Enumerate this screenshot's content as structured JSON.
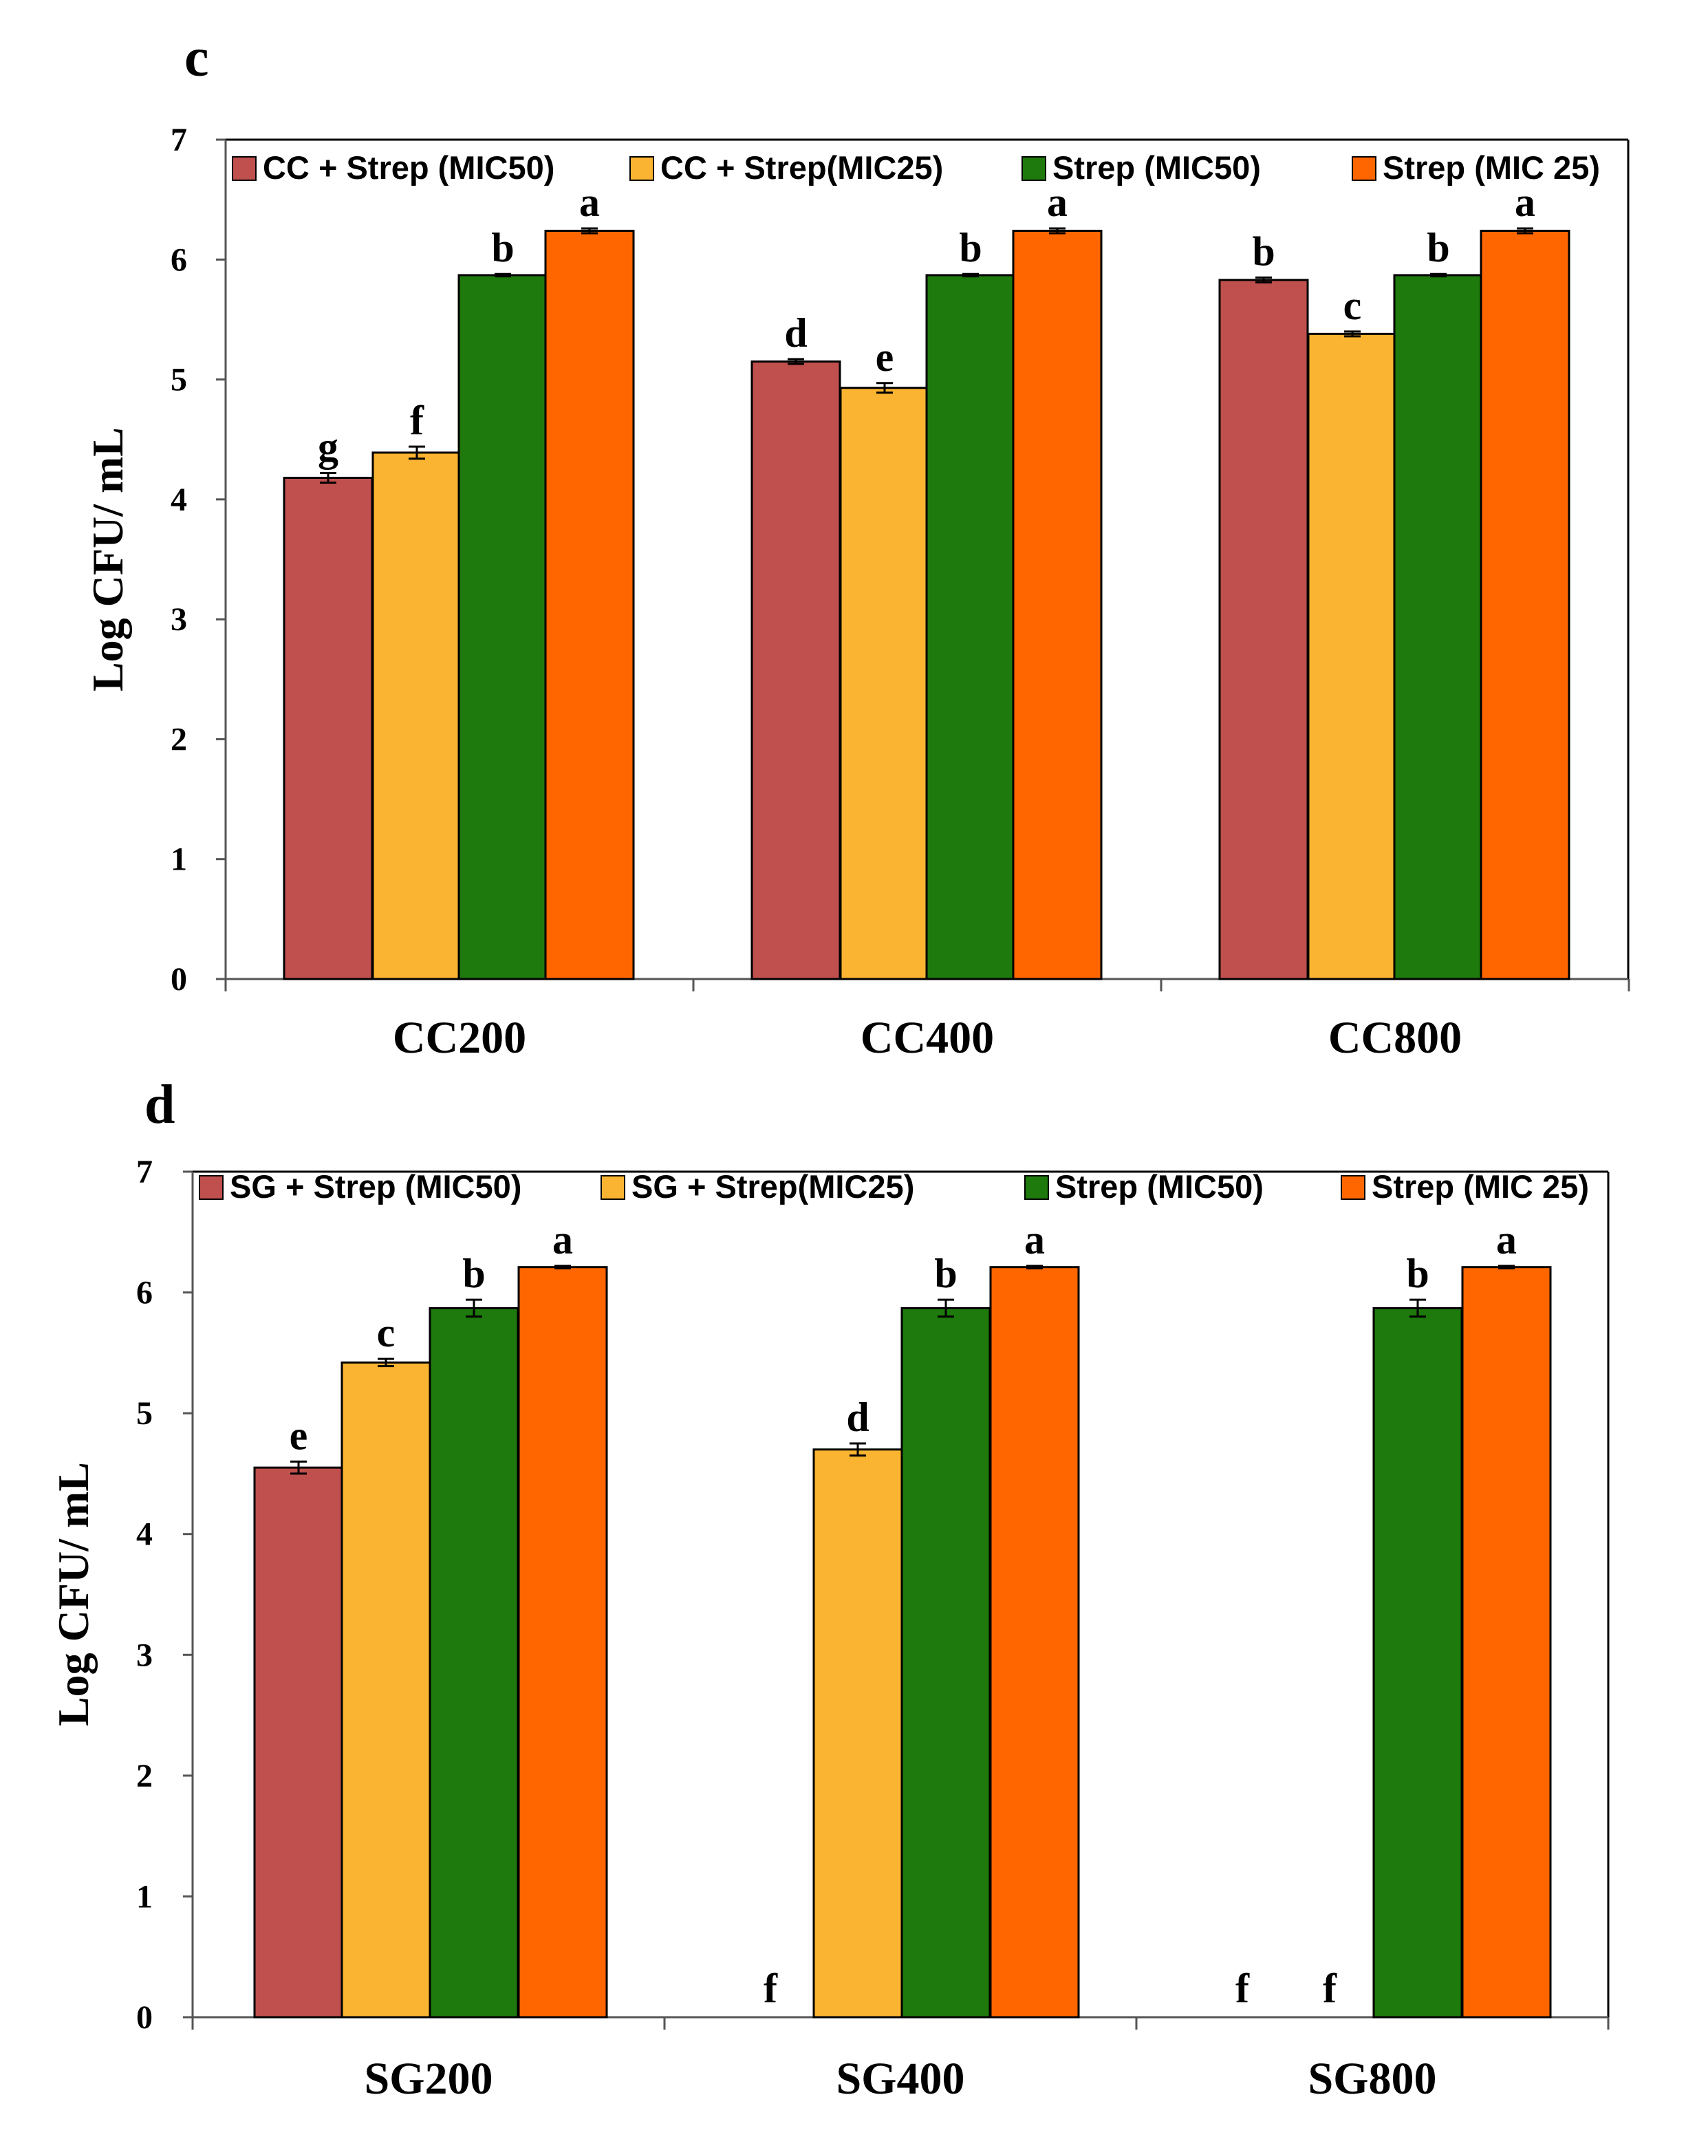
{
  "colors": {
    "series1": "#c0504d",
    "series2": "#fbb431",
    "series3": "#1e7a0c",
    "series4": "#ff6600",
    "axis": "#555555"
  },
  "chart_data": [
    {
      "type": "bar",
      "panel": "c",
      "ylabel": "Log CFU/ mL",
      "ylim": [
        0,
        7
      ],
      "yticks": [
        "0",
        "1",
        "2",
        "3",
        "4",
        "5",
        "6",
        "7"
      ],
      "categories": [
        "CC200",
        "CC400",
        "CC800"
      ],
      "series": [
        {
          "name": "CC + Strep (MIC50)",
          "values": [
            4.18,
            5.15,
            5.83
          ],
          "errors": [
            0.04,
            0.02,
            0.02
          ],
          "letters": [
            "g",
            "d",
            "b"
          ]
        },
        {
          "name": "CC + Strep(MIC25)",
          "values": [
            4.39,
            4.93,
            5.38
          ],
          "errors": [
            0.05,
            0.04,
            0.02
          ],
          "letters": [
            "f",
            "e",
            "c"
          ]
        },
        {
          "name": "Strep (MIC50)",
          "values": [
            5.87,
            5.87,
            5.87
          ],
          "errors": [
            0.01,
            0.01,
            0.01
          ],
          "letters": [
            "b",
            "b",
            "b"
          ]
        },
        {
          "name": "Strep (MIC 25)",
          "values": [
            6.24,
            6.24,
            6.24
          ],
          "errors": [
            0.02,
            0.02,
            0.02
          ],
          "letters": [
            "a",
            "a",
            "a"
          ]
        }
      ]
    },
    {
      "type": "bar",
      "panel": "d",
      "ylabel": "Log CFU/ mL",
      "ylim": [
        0,
        7
      ],
      "yticks": [
        "0",
        "1",
        "2",
        "3",
        "4",
        "5",
        "6",
        "7"
      ],
      "categories": [
        "SG200",
        "SG400",
        "SG800"
      ],
      "series": [
        {
          "name": "SG + Strep (MIC50)",
          "values": [
            4.55,
            0,
            0
          ],
          "errors": [
            0.05,
            0,
            0
          ],
          "letters": [
            "e",
            "f",
            "f"
          ]
        },
        {
          "name": "SG + Strep(MIC25)",
          "values": [
            5.42,
            4.7,
            0
          ],
          "errors": [
            0.03,
            0.05,
            0
          ],
          "letters": [
            "c",
            "d",
            "f"
          ]
        },
        {
          "name": "Strep (MIC50)",
          "values": [
            5.87,
            5.87,
            5.87
          ],
          "errors": [
            0.07,
            0.07,
            0.07
          ],
          "letters": [
            "b",
            "b",
            "b"
          ]
        },
        {
          "name": "Strep (MIC 25)",
          "values": [
            6.21,
            6.21,
            6.21
          ],
          "errors": [
            0.01,
            0.01,
            0.01
          ],
          "letters": [
            "a",
            "a",
            "a"
          ]
        }
      ]
    }
  ]
}
